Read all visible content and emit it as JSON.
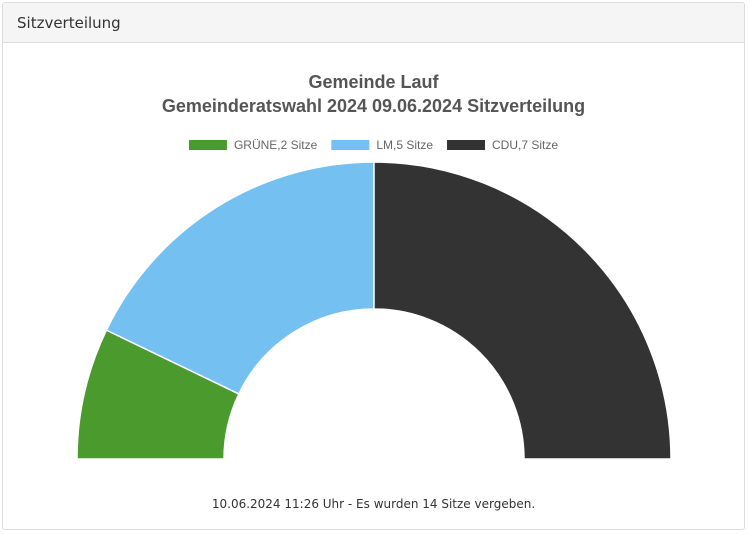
{
  "panel": {
    "title": "Sitzverteilung"
  },
  "chart_data": {
    "type": "pie",
    "variant": "semicircle-parliament",
    "title_lines": [
      "Gemeinde Lauf",
      "Gemeinderatswahl 2024 09.06.2024 Sitzverteilung"
    ],
    "legend_position": "top-center",
    "series": [
      {
        "name": "GRÜNE,2 Sitze",
        "party": "GRÜNE",
        "seats": 2,
        "color": "#4a9a2e"
      },
      {
        "name": "LM,5 Sitze",
        "party": "LM",
        "seats": 5,
        "color": "#74c0f1"
      },
      {
        "name": "CDU,7 Sitze",
        "party": "CDU",
        "seats": 7,
        "color": "#333333"
      }
    ],
    "total_seats": 14
  },
  "footer": {
    "text": "10.06.2024 11:26 Uhr - Es wurden 14 Sitze vergeben."
  }
}
